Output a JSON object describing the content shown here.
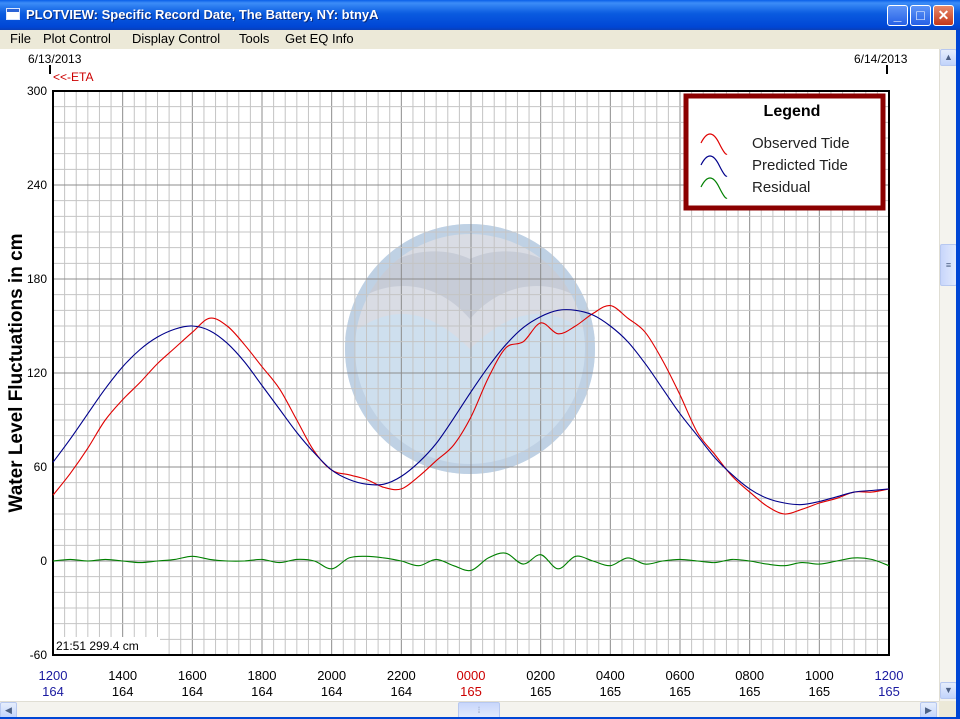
{
  "window": {
    "title": "PLOTVIEW: Specific Record Date, The Battery, NY: btnyA",
    "minimize_label": "_",
    "maximize_label": "□",
    "close_label": "✕"
  },
  "menu": [
    "File",
    "Plot Control",
    "Display Control",
    "Tools",
    "Get EQ Info"
  ],
  "header": {
    "start_date": "6/13/2013",
    "end_date": "6/14/2013",
    "eta_label": "<<-ETA"
  },
  "readout": "21:51  299.4 cm",
  "chart_data": {
    "type": "line",
    "ylabel": "Water Level Fluctuations in cm",
    "ylim": [
      -60,
      300
    ],
    "yticks": [
      -60,
      0,
      60,
      120,
      180,
      240,
      300
    ],
    "xlim": [
      0,
      24
    ],
    "x_ticks": [
      {
        "time": "1200",
        "day": "164",
        "color": "#1a1aa0"
      },
      {
        "time": "1400",
        "day": "164",
        "color": "#000000"
      },
      {
        "time": "1600",
        "day": "164",
        "color": "#000000"
      },
      {
        "time": "1800",
        "day": "164",
        "color": "#000000"
      },
      {
        "time": "2000",
        "day": "164",
        "color": "#000000"
      },
      {
        "time": "2200",
        "day": "164",
        "color": "#000000"
      },
      {
        "time": "0000",
        "day": "165",
        "color": "#cc0000"
      },
      {
        "time": "0200",
        "day": "165",
        "color": "#000000"
      },
      {
        "time": "0400",
        "day": "165",
        "color": "#000000"
      },
      {
        "time": "0600",
        "day": "165",
        "color": "#000000"
      },
      {
        "time": "0800",
        "day": "165",
        "color": "#000000"
      },
      {
        "time": "1000",
        "day": "165",
        "color": "#000000"
      },
      {
        "time": "1200",
        "day": "165",
        "color": "#1a1aa0"
      }
    ],
    "legend": {
      "title": "Legend",
      "placement": "top-right",
      "items": [
        {
          "name": "Observed Tide",
          "color": "#e00000"
        },
        {
          "name": "Predicted Tide",
          "color": "#00008b"
        },
        {
          "name": "Residual",
          "color": "#008000"
        }
      ]
    },
    "series": [
      {
        "name": "Observed Tide",
        "color": "#e00000",
        "x": [
          0,
          0.5,
          1,
          1.5,
          2,
          2.5,
          3,
          3.5,
          4,
          4.5,
          5,
          5.5,
          6,
          6.5,
          7,
          7.5,
          8,
          8.5,
          9,
          9.5,
          10,
          10.5,
          11,
          11.5,
          12,
          12.5,
          13,
          13.5,
          14,
          14.5,
          15,
          15.5,
          16,
          16.5,
          17,
          17.5,
          18,
          18.5,
          19,
          19.5,
          20,
          20.5,
          21,
          21.5,
          22,
          22.5,
          23,
          23.5,
          24
        ],
        "y": [
          42,
          56,
          72,
          90,
          103,
          114,
          126,
          136,
          146,
          155,
          150,
          138,
          124,
          110,
          90,
          70,
          58,
          55,
          52,
          47,
          46,
          54,
          64,
          74,
          92,
          117,
          136,
          140,
          152,
          145,
          150,
          158,
          163,
          155,
          146,
          128,
          106,
          82,
          68,
          54,
          44,
          35,
          30,
          33,
          37,
          40,
          44,
          44,
          46
        ]
      },
      {
        "name": "Predicted Tide",
        "color": "#00008b",
        "x": [
          0,
          0.5,
          1,
          1.5,
          2,
          2.5,
          3,
          3.5,
          4,
          4.5,
          5,
          5.5,
          6,
          6.5,
          7,
          7.5,
          8,
          8.5,
          9,
          9.5,
          10,
          10.5,
          11,
          11.5,
          12,
          12.5,
          13,
          13.5,
          14,
          14.5,
          15,
          15.5,
          16,
          16.5,
          17,
          17.5,
          18,
          18.5,
          19,
          19.5,
          20,
          20.5,
          21,
          21.5,
          22,
          22.5,
          23,
          23.5,
          24
        ],
        "y": [
          63,
          78,
          94,
          110,
          124,
          135,
          143,
          148,
          150,
          147,
          139,
          127,
          112,
          97,
          82,
          69,
          58,
          52,
          49,
          49,
          54,
          63,
          75,
          91,
          108,
          124,
          138,
          149,
          156,
          160,
          160,
          157,
          150,
          140,
          126,
          110,
          94,
          80,
          66,
          55,
          46,
          40,
          37,
          36,
          38,
          41,
          44,
          45,
          46
        ]
      },
      {
        "name": "Residual",
        "color": "#008000",
        "x": [
          0,
          0.5,
          1,
          1.5,
          2,
          2.5,
          3,
          3.5,
          4,
          4.5,
          5,
          5.5,
          6,
          6.5,
          7,
          7.5,
          8,
          8.5,
          9,
          9.5,
          10,
          10.5,
          11,
          11.5,
          12,
          12.5,
          13,
          13.5,
          14,
          14.5,
          15,
          15.5,
          16,
          16.5,
          17,
          17.5,
          18,
          18.5,
          19,
          19.5,
          20,
          20.5,
          21,
          21.5,
          22,
          22.5,
          23,
          23.5,
          24
        ],
        "y": [
          0,
          1,
          0,
          1,
          0,
          -1,
          0,
          1,
          3,
          1,
          0,
          0,
          1,
          -1,
          1,
          0,
          -5,
          2,
          3,
          2,
          0,
          -3,
          1,
          -3,
          -6,
          2,
          5,
          -2,
          4,
          -5,
          3,
          0,
          -3,
          2,
          -2,
          0,
          1,
          0,
          -1,
          1,
          0,
          -2,
          -3,
          -1,
          -2,
          0,
          2,
          1,
          -3
        ]
      }
    ]
  }
}
